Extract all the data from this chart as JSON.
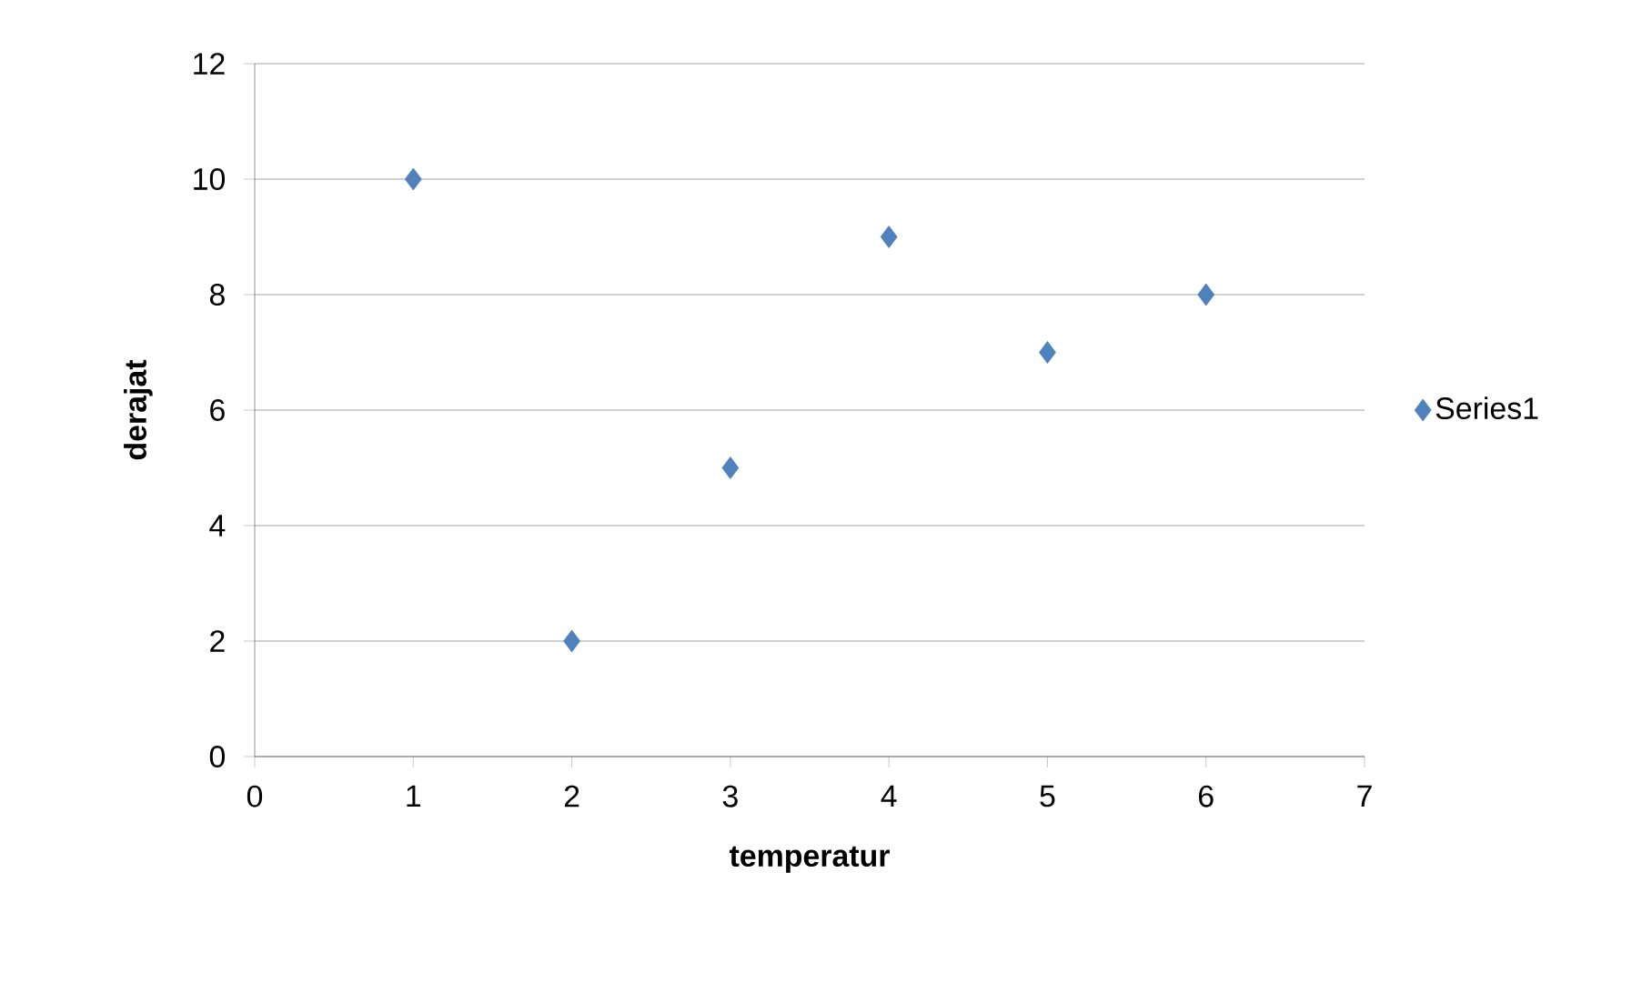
{
  "chart_data": {
    "type": "scatter",
    "xlabel": "temperatur",
    "ylabel": "derajat",
    "x": [
      1,
      2,
      3,
      4,
      5,
      6
    ],
    "series": [
      {
        "name": "Series1",
        "color": "#4f81bd",
        "values": [
          10,
          2,
          5,
          9,
          7,
          8
        ]
      }
    ],
    "xlim": [
      0,
      7
    ],
    "ylim": [
      0,
      12
    ],
    "xticks": [
      0,
      1,
      2,
      3,
      4,
      5,
      6,
      7
    ],
    "yticks": [
      0,
      2,
      4,
      6,
      8,
      10,
      12
    ],
    "grid": "y",
    "legend": "right",
    "marker": "diamond"
  }
}
